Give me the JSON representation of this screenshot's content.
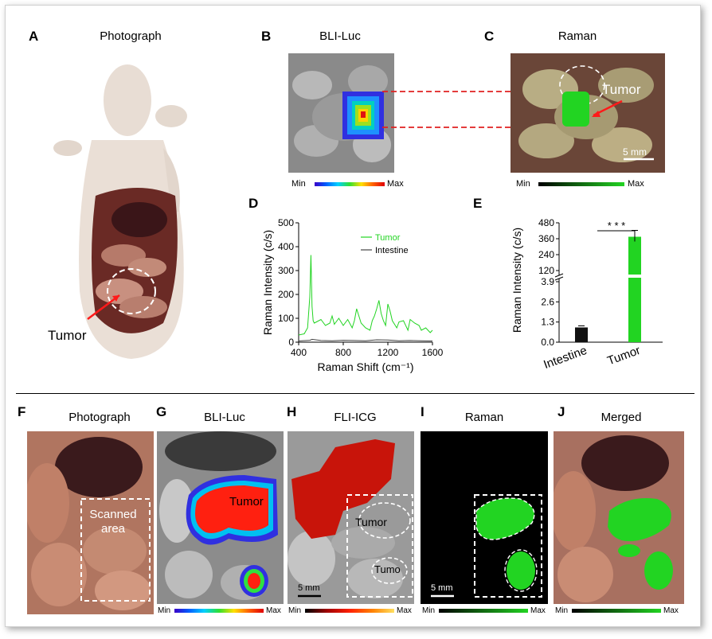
{
  "top": {
    "A": {
      "letter": "A",
      "title": "Photograph",
      "annotation": "Tumor"
    },
    "B": {
      "letter": "B",
      "title": "BLI-Luc",
      "cbar_min": "Min",
      "cbar_max": "Max"
    },
    "C": {
      "letter": "C",
      "title": "Raman",
      "annotation": "Tumor",
      "scale": "5 mm",
      "cbar_min": "Min",
      "cbar_max": "Max"
    },
    "D": {
      "letter": "D"
    },
    "E": {
      "letter": "E"
    }
  },
  "bottom": {
    "F": {
      "letter": "F",
      "title": "Photograph",
      "annotation_line1": "Scanned",
      "annotation_line2": "area"
    },
    "G": {
      "letter": "G",
      "title": "BLI-Luc",
      "annotation": "Tumor",
      "cbar_min": "Min",
      "cbar_max": "Max"
    },
    "H": {
      "letter": "H",
      "title": "FLI-ICG",
      "annotation1": "Tumor",
      "annotation2": "Tumo",
      "scale": "5 mm",
      "cbar_min": "Min",
      "cbar_max": "Max"
    },
    "I": {
      "letter": "I",
      "title": "Raman",
      "scale": "5 mm",
      "cbar_min": "Min",
      "cbar_max": "Max"
    },
    "J": {
      "letter": "J",
      "title": "Merged",
      "cbar_min": "Min",
      "cbar_max": "Max"
    }
  },
  "colors": {
    "tumor_green": "#22d422",
    "intestine_gray": "#444444",
    "jet_start": "#3a00c8",
    "jet_end": "#e00000"
  },
  "chart_data": [
    {
      "type": "line",
      "panel": "D",
      "xlabel": "Raman Shift (cm⁻¹)",
      "ylabel": "Raman Intensity (c/s)",
      "xlim": [
        400,
        1600
      ],
      "ylim": [
        0,
        500
      ],
      "xticks": [
        400,
        800,
        1200,
        1600
      ],
      "yticks": [
        0,
        100,
        200,
        300,
        400,
        500
      ],
      "legend_position": "top-right",
      "series": [
        {
          "name": "Tumor",
          "color": "#22d422",
          "x": [
            400,
            450,
            480,
            500,
            510,
            520,
            530,
            540,
            560,
            600,
            640,
            680,
            700,
            720,
            760,
            800,
            840,
            880,
            900,
            920,
            960,
            1000,
            1040,
            1060,
            1080,
            1100,
            1120,
            1140,
            1160,
            1180,
            1200,
            1220,
            1240,
            1260,
            1280,
            1300,
            1340,
            1380,
            1400,
            1440,
            1480,
            1500,
            1540,
            1580,
            1600
          ],
          "y": [
            30,
            35,
            60,
            190,
            365,
            150,
            90,
            80,
            85,
            95,
            70,
            80,
            110,
            75,
            100,
            70,
            95,
            60,
            90,
            140,
            80,
            60,
            50,
            90,
            110,
            140,
            175,
            120,
            90,
            70,
            160,
            130,
            90,
            75,
            60,
            85,
            90,
            50,
            95,
            80,
            70,
            50,
            60,
            40,
            50
          ]
        },
        {
          "name": "Intestine",
          "color": "#444444",
          "x": [
            400,
            500,
            520,
            600,
            700,
            800,
            900,
            1000,
            1100,
            1200,
            1300,
            1400,
            1500,
            1600
          ],
          "y": [
            5,
            8,
            12,
            7,
            6,
            8,
            7,
            6,
            10,
            9,
            6,
            7,
            6,
            5
          ]
        }
      ]
    },
    {
      "type": "bar",
      "panel": "E",
      "categories": [
        "Intestine",
        "Tumor"
      ],
      "values": [
        0.95,
        375
      ],
      "colors": [
        "#111111",
        "#22d422"
      ],
      "ylabel": "Raman Intensity (c/s)",
      "yticks_lower": [
        "0.0",
        "1.3",
        "2.6",
        "3.9"
      ],
      "yticks_upper": [
        "120",
        "240",
        "360",
        "480"
      ],
      "axis_break": true,
      "significance": "* * *"
    }
  ]
}
